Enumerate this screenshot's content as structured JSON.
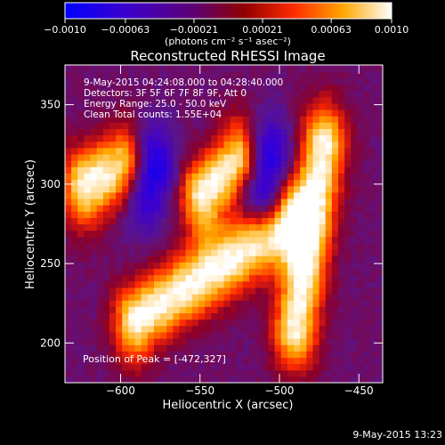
{
  "chart_data": {
    "type": "heatmap",
    "title": "Reconstructed RHESSI Image",
    "xlabel": "Heliocentric X (arcsec)",
    "ylabel": "Heliocentric Y (arcsec)",
    "xlim": [
      -635,
      -435
    ],
    "ylim": [
      175,
      375
    ],
    "x_ticks": [
      -600,
      -550,
      -500,
      -450
    ],
    "y_ticks": [
      200,
      250,
      300,
      350
    ],
    "x_tick_labels": [
      "−600",
      "−550",
      "−500",
      "−450"
    ],
    "y_tick_labels": [
      "200",
      "250",
      "300",
      "350"
    ],
    "colorbar": {
      "range": [
        -0.001,
        0.001
      ],
      "ticks": [
        -0.001,
        -0.00063,
        -0.00021,
        0.00021,
        0.00063,
        0.001
      ],
      "tick_labels": [
        "−0.0010",
        "−0.00063",
        "−0.00021",
        "0.00021",
        "0.00063",
        "0.0010"
      ],
      "units": "(photons cm⁻² s⁻¹ asec⁻²)",
      "colors": [
        "#0000ff",
        "#4000c0",
        "#500070",
        "#8a0000",
        "#ff3000",
        "#ffa000",
        "#ffffff"
      ]
    },
    "annotations": [
      "9-May-2015 04:24:08.000 to 04:28:40.000",
      "Detectors: 3F 5F 6F 7F 8F 9F, Att 0",
      "Energy Range: 25.0 - 50.0 keV",
      "Clean     Total counts: 1.55E+04"
    ],
    "peak_label": "Position of Peak = [-472,327]",
    "peak": [
      -472,
      327
    ],
    "stripes": [
      {
        "x": [
          -622,
          -598
        ],
        "y": [
          300,
          310
        ],
        "sign": 1
      },
      {
        "x": [
          -548,
          -525
        ],
        "y": [
          295,
          315
        ],
        "sign": 1
      },
      {
        "x": [
          -472,
          -490
        ],
        "y": [
          325,
          210
        ],
        "sign": 1
      },
      {
        "x": [
          -590,
          -495
        ],
        "y": [
          215,
          275
        ],
        "sign": 1
      },
      {
        "x": [
          -580,
          -585
        ],
        "y": [
          310,
          300
        ],
        "sign": -1
      },
      {
        "x": [
          -508,
          -510
        ],
        "y": [
          315,
          300
        ],
        "sign": -1
      }
    ]
  },
  "footer_timestamp": "9-May-2015 13:23"
}
